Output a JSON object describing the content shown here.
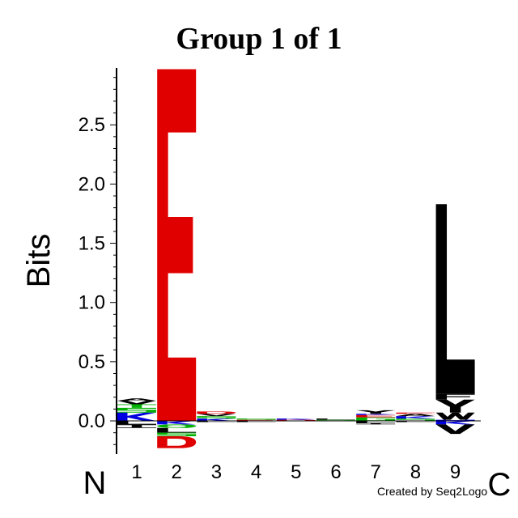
{
  "chart_data": {
    "type": "sequence-logo",
    "title": "Group 1 of 1",
    "ylabel": "Bits",
    "ylim": [
      -0.28,
      2.98
    ],
    "yticks": [
      "0.0",
      "0.5",
      "1.0",
      "1.5",
      "2.0",
      "2.5"
    ],
    "ytick_values": [
      0.0,
      0.5,
      1.0,
      1.5,
      2.0,
      2.5
    ],
    "positions": [
      "1",
      "2",
      "3",
      "4",
      "5",
      "6",
      "7",
      "8",
      "9"
    ],
    "n_terminal_label": "N",
    "c_terminal_label": "C",
    "credit": "Created by Seq2Logo",
    "colors": {
      "acidic": "#e00000",
      "basic": "#0000e0",
      "polar": "#00b000",
      "hydrophobic": "#000000"
    },
    "stacks": [
      {
        "position": "1",
        "above": [
          {
            "letter": "K",
            "color": "#0000e0",
            "height": 0.07
          },
          {
            "letter": "S",
            "color": "#00b000",
            "height": 0.04
          },
          {
            "letter": "T",
            "color": "#00b000",
            "height": 0.03
          },
          {
            "letter": "V",
            "color": "#000000",
            "height": 0.03
          },
          {
            "letter": "A",
            "color": "#000000",
            "height": 0.02
          }
        ],
        "below": [
          {
            "letter": "L",
            "color": "#000000",
            "height": 0.03
          },
          {
            "letter": "I",
            "color": "#000000",
            "height": 0.03
          }
        ]
      },
      {
        "position": "2",
        "above": [
          {
            "letter": "E",
            "color": "#e00000",
            "height": 2.97
          }
        ],
        "below": [
          {
            "letter": "K",
            "color": "#0000e0",
            "height": 0.03
          },
          {
            "letter": "Q",
            "color": "#00b000",
            "height": 0.03
          },
          {
            "letter": "L",
            "color": "#000000",
            "height": 0.04
          },
          {
            "letter": "S",
            "color": "#00b000",
            "height": 0.03
          },
          {
            "letter": "D",
            "color": "#e00000",
            "height": 0.1
          }
        ]
      },
      {
        "position": "3",
        "above": [
          {
            "letter": "K",
            "color": "#0000e0",
            "height": 0.02
          },
          {
            "letter": "S",
            "color": "#00b000",
            "height": 0.02
          },
          {
            "letter": "V",
            "color": "#000000",
            "height": 0.02
          },
          {
            "letter": "D",
            "color": "#e00000",
            "height": 0.02
          }
        ],
        "below": [
          {
            "letter": "L",
            "color": "#000000",
            "height": 0.01
          }
        ]
      },
      {
        "position": "4",
        "above": [
          {
            "letter": "E",
            "color": "#e00000",
            "height": 0.01
          },
          {
            "letter": "S",
            "color": "#00b000",
            "height": 0.01
          }
        ],
        "below": [
          {
            "letter": "L",
            "color": "#000000",
            "height": 0.01
          }
        ]
      },
      {
        "position": "5",
        "above": [
          {
            "letter": "D",
            "color": "#e00000",
            "height": 0.01
          },
          {
            "letter": "K",
            "color": "#0000e0",
            "height": 0.01
          }
        ],
        "below": []
      },
      {
        "position": "6",
        "above": [
          {
            "letter": "S",
            "color": "#00b000",
            "height": 0.01
          },
          {
            "letter": "L",
            "color": "#000000",
            "height": 0.01
          }
        ],
        "below": []
      },
      {
        "position": "7",
        "above": [
          {
            "letter": "G",
            "color": "#00b000",
            "height": 0.03
          },
          {
            "letter": "E",
            "color": "#e00000",
            "height": 0.02
          },
          {
            "letter": "K",
            "color": "#0000e0",
            "height": 0.01
          },
          {
            "letter": "Y",
            "color": "#000000",
            "height": 0.03
          }
        ],
        "below": [
          {
            "letter": "L",
            "color": "#000000",
            "height": 0.02
          },
          {
            "letter": "I",
            "color": "#000000",
            "height": 0.01
          }
        ]
      },
      {
        "position": "8",
        "above": [
          {
            "letter": "S",
            "color": "#00b000",
            "height": 0.02
          },
          {
            "letter": "K",
            "color": "#0000e0",
            "height": 0.02
          },
          {
            "letter": "A",
            "color": "#000000",
            "height": 0.02
          },
          {
            "letter": "E",
            "color": "#e00000",
            "height": 0.01
          }
        ],
        "below": [
          {
            "letter": "L",
            "color": "#000000",
            "height": 0.01
          }
        ]
      },
      {
        "position": "9",
        "above": [
          {
            "letter": "H",
            "color": "#0000e0",
            "height": 0.01
          },
          {
            "letter": "W",
            "color": "#000000",
            "height": 0.06
          },
          {
            "letter": "Y",
            "color": "#000000",
            "height": 0.11
          },
          {
            "letter": "F",
            "color": "#000000",
            "height": 0.05
          },
          {
            "letter": "L",
            "color": "#000000",
            "height": 1.6
          }
        ],
        "below": [
          {
            "letter": "K",
            "color": "#0000e0",
            "height": 0.03
          },
          {
            "letter": "V",
            "color": "#000000",
            "height": 0.08
          }
        ]
      }
    ]
  }
}
